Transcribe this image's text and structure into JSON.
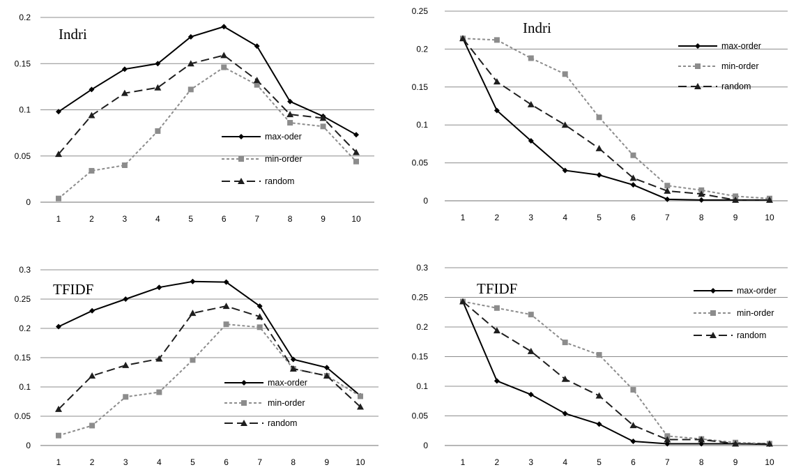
{
  "chart_data": [
    {
      "type": "line",
      "title": "Indri",
      "x": [
        1,
        2,
        3,
        4,
        5,
        6,
        7,
        8,
        9,
        10
      ],
      "ylim": [
        0,
        0.2
      ],
      "yticks": [
        "0",
        "0.05",
        "0.1",
        "0.15",
        "0.2"
      ],
      "grid": true,
      "legend_position": "center-right",
      "series": [
        {
          "name": "max-oder",
          "values": [
            0.098,
            0.122,
            0.144,
            0.15,
            0.179,
            0.19,
            0.169,
            0.109,
            0.093,
            0.073
          ]
        },
        {
          "name": "min-order",
          "values": [
            0.004,
            0.034,
            0.04,
            0.077,
            0.122,
            0.146,
            0.127,
            0.086,
            0.082,
            0.044
          ]
        },
        {
          "name": "random",
          "values": [
            0.052,
            0.094,
            0.118,
            0.124,
            0.15,
            0.159,
            0.132,
            0.095,
            0.091,
            0.054
          ]
        }
      ]
    },
    {
      "type": "line",
      "title": "Indri",
      "x": [
        1,
        2,
        3,
        4,
        5,
        6,
        7,
        8,
        9,
        10
      ],
      "ylim": [
        0,
        0.25
      ],
      "yticks": [
        "0",
        "0.05",
        "0.1",
        "0.15",
        "0.2",
        "0.25"
      ],
      "grid": true,
      "legend_position": "top-right",
      "series": [
        {
          "name": "max-order",
          "values": [
            0.214,
            0.119,
            0.079,
            0.04,
            0.034,
            0.021,
            0.002,
            0.001,
            0.001,
            0.001
          ]
        },
        {
          "name": "min-order",
          "values": [
            0.214,
            0.212,
            0.188,
            0.167,
            0.11,
            0.06,
            0.02,
            0.014,
            0.006,
            0.003
          ]
        },
        {
          "name": "random",
          "values": [
            0.214,
            0.157,
            0.127,
            0.1,
            0.069,
            0.03,
            0.013,
            0.009,
            0.001,
            0.001
          ]
        }
      ]
    },
    {
      "type": "line",
      "title": "TFIDF",
      "x": [
        1,
        2,
        3,
        4,
        5,
        6,
        7,
        8,
        9,
        10
      ],
      "ylim": [
        0,
        0.3
      ],
      "yticks": [
        "0",
        "0.05",
        "0.1",
        "0.15",
        "0.2",
        "0.25",
        "0.3"
      ],
      "grid": true,
      "legend_position": "bottom-right",
      "series": [
        {
          "name": "max-order",
          "values": [
            0.203,
            0.23,
            0.25,
            0.27,
            0.28,
            0.279,
            0.238,
            0.147,
            0.133,
            0.085
          ]
        },
        {
          "name": "min-order",
          "values": [
            0.017,
            0.034,
            0.083,
            0.091,
            0.146,
            0.207,
            0.202,
            0.131,
            0.119,
            0.084
          ]
        },
        {
          "name": "random",
          "values": [
            0.062,
            0.119,
            0.137,
            0.148,
            0.226,
            0.238,
            0.22,
            0.131,
            0.119,
            0.066
          ]
        }
      ]
    },
    {
      "type": "line",
      "title": "TFIDF",
      "x": [
        1,
        2,
        3,
        4,
        5,
        6,
        7,
        8,
        9,
        10
      ],
      "ylim": [
        0,
        0.3
      ],
      "yticks": [
        "0",
        "0.05",
        "0.1",
        "0.15",
        "0.2",
        "0.25",
        "0.3"
      ],
      "grid": true,
      "legend_position": "top-right",
      "series": [
        {
          "name": "max-order",
          "values": [
            0.243,
            0.109,
            0.086,
            0.054,
            0.036,
            0.007,
            0.003,
            0.003,
            0.003,
            0.002
          ]
        },
        {
          "name": "min-order",
          "values": [
            0.243,
            0.232,
            0.221,
            0.174,
            0.153,
            0.094,
            0.016,
            0.011,
            0.005,
            0.003
          ]
        },
        {
          "name": "random",
          "values": [
            0.243,
            0.194,
            0.159,
            0.112,
            0.084,
            0.034,
            0.01,
            0.01,
            0.003,
            0.003
          ]
        }
      ]
    }
  ],
  "styles": {
    "grid_color": "#8c8c8c",
    "series": [
      {
        "color": "#000000",
        "dash": "",
        "marker": "diamond"
      },
      {
        "color": "#8c8c8c",
        "dash": "4,3",
        "marker": "square"
      },
      {
        "color": "#1e1e1e",
        "dash": "12,6",
        "marker": "triangle"
      }
    ]
  }
}
